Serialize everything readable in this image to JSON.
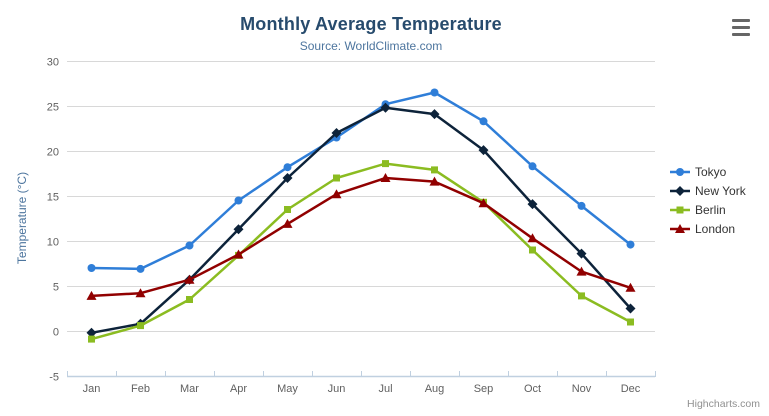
{
  "chart_data": {
    "type": "line",
    "title": "Monthly Average Temperature",
    "subtitle": "Source: WorldClimate.com",
    "categories": [
      "Jan",
      "Feb",
      "Mar",
      "Apr",
      "May",
      "Jun",
      "Jul",
      "Aug",
      "Sep",
      "Oct",
      "Nov",
      "Dec"
    ],
    "xlabel": "",
    "ylabel": "Temperature (°C)",
    "ylim": [
      -5,
      30
    ],
    "ytick_step": 5,
    "grid": true,
    "legend_position": "right",
    "series": [
      {
        "name": "Tokyo",
        "marker": "circle",
        "color": "#2f7ed8",
        "values": [
          7.0,
          6.9,
          9.5,
          14.5,
          18.2,
          21.5,
          25.2,
          26.5,
          23.3,
          18.3,
          13.9,
          9.6
        ]
      },
      {
        "name": "New York",
        "marker": "diamond",
        "color": "#0d233a",
        "values": [
          -0.2,
          0.8,
          5.7,
          11.3,
          17.0,
          22.0,
          24.8,
          24.1,
          20.1,
          14.1,
          8.6,
          2.5
        ]
      },
      {
        "name": "Berlin",
        "marker": "square",
        "color": "#8bbc21",
        "values": [
          -0.9,
          0.6,
          3.5,
          8.4,
          13.5,
          17.0,
          18.6,
          17.9,
          14.3,
          9.0,
          3.9,
          1.0
        ]
      },
      {
        "name": "London",
        "marker": "triangle",
        "color": "#910000",
        "values": [
          3.9,
          4.2,
          5.7,
          8.5,
          11.9,
          15.2,
          17.0,
          16.6,
          14.2,
          10.3,
          6.6,
          4.8
        ]
      }
    ]
  },
  "theme": {
    "title_color": "#274b6d",
    "subtitle_color": "#4d759e",
    "axis_title_color": "#4d759e",
    "tick_label_color": "#606060",
    "grid_color": "#d8d8d8",
    "axis_line_color": "#c0d0e0",
    "credits_color": "#909090",
    "menu_icon_color": "#666666"
  },
  "export_menu": {
    "icon": "hamburger"
  },
  "credits": {
    "label": "Highcharts.com"
  }
}
